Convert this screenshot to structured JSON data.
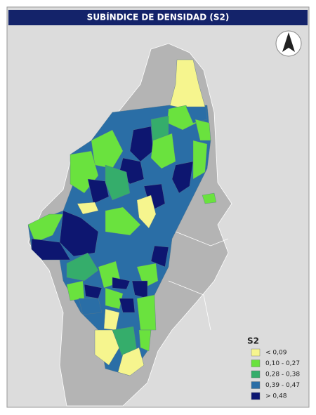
{
  "header": {
    "title": "SUBÍNDICE DE DENSIDAD (S2)"
  },
  "legend": {
    "title": "S2",
    "items": [
      {
        "label": "< 0,09",
        "color": "#f6f58e"
      },
      {
        "label": "0,10 - 0,27",
        "color": "#6ae23e"
      },
      {
        "label": "0,28 - 0,38",
        "color": "#35ad6b"
      },
      {
        "label": "0,39 - 0,47",
        "color": "#2a6ea6"
      },
      {
        "label": "> 0,48",
        "color": "#0d1670"
      }
    ]
  }
}
